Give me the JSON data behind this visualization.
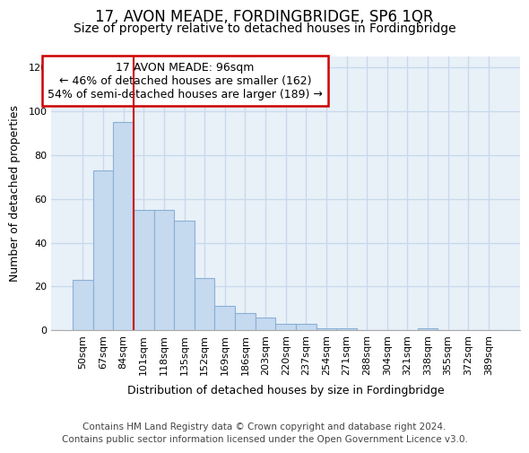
{
  "title": "17, AVON MEADE, FORDINGBRIDGE, SP6 1QR",
  "subtitle": "Size of property relative to detached houses in Fordingbridge",
  "xlabel": "Distribution of detached houses by size in Fordingbridge",
  "ylabel": "Number of detached properties",
  "footer_line1": "Contains HM Land Registry data © Crown copyright and database right 2024.",
  "footer_line2": "Contains public sector information licensed under the Open Government Licence v3.0.",
  "categories": [
    "50sqm",
    "67sqm",
    "84sqm",
    "101sqm",
    "118sqm",
    "135sqm",
    "152sqm",
    "169sqm",
    "186sqm",
    "203sqm",
    "220sqm",
    "237sqm",
    "254sqm",
    "271sqm",
    "288sqm",
    "304sqm",
    "321sqm",
    "338sqm",
    "355sqm",
    "372sqm",
    "389sqm"
  ],
  "values": [
    23,
    73,
    95,
    55,
    55,
    50,
    24,
    11,
    8,
    6,
    3,
    3,
    1,
    1,
    0,
    0,
    0,
    1,
    0,
    0,
    0
  ],
  "bar_color": "#c5d9ef",
  "bar_edge_color": "#8ab0d4",
  "vline_x": 2.5,
  "vline_color": "#cc0000",
  "annotation_line1": "17 AVON MEADE: 96sqm",
  "annotation_line2": "← 46% of detached houses are smaller (162)",
  "annotation_line3": "54% of semi-detached houses are larger (189) →",
  "annotation_box_edge_color": "#cc0000",
  "ylim_max": 125,
  "yticks": [
    0,
    20,
    40,
    60,
    80,
    100,
    120
  ],
  "grid_color": "#c8d8ec",
  "axes_bg_color": "#e8f0f8",
  "title_fontsize": 12,
  "subtitle_fontsize": 10,
  "xlabel_fontsize": 9,
  "ylabel_fontsize": 9,
  "tick_fontsize": 8,
  "annotation_fontsize": 9,
  "footer_fontsize": 7.5
}
